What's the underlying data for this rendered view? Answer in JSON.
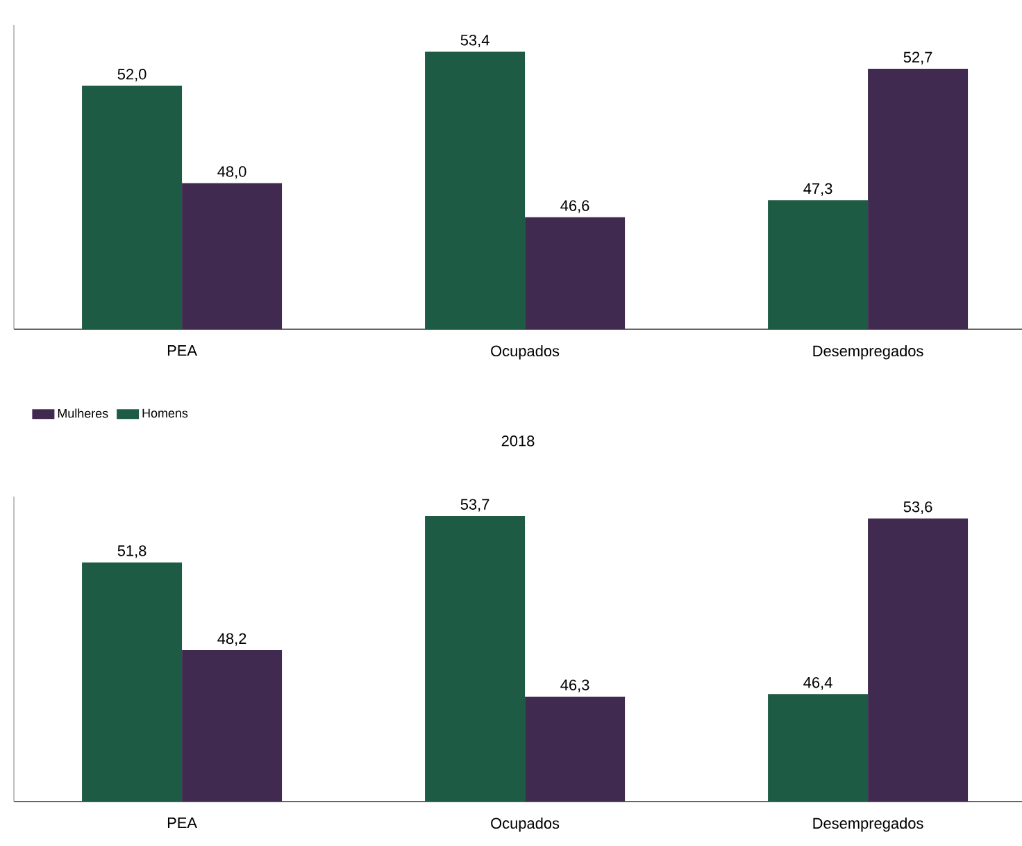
{
  "chart_data": [
    {
      "type": "bar",
      "categories": [
        "PEA",
        "Ocupados",
        "Desempregados"
      ],
      "series": [
        {
          "name": "Homens",
          "color": "#1d5b45",
          "values": [
            52.0,
            53.4,
            47.3
          ],
          "value_labels": [
            "52,0",
            "53,4",
            "47,3"
          ]
        },
        {
          "name": "Mulheres",
          "color": "#412a50",
          "values": [
            48.0,
            46.6,
            52.7
          ],
          "value_labels": [
            "48,0",
            "46,6",
            "52,7"
          ]
        }
      ],
      "ylim": [
        42,
        54.5
      ],
      "tick_labels": "x",
      "legend": "bottom left"
    },
    {
      "type": "bar",
      "title": "2018",
      "categories": [
        "PEA",
        "Ocupados",
        "Desempregados"
      ],
      "series": [
        {
          "color": "#1d5b45",
          "values": [
            51.8,
            53.7,
            46.4
          ],
          "value_labels": [
            "51,8",
            "53,7",
            "46,4"
          ]
        },
        {
          "color": "#412a50",
          "values": [
            48.2,
            46.3,
            53.6
          ],
          "value_labels": [
            "48,2",
            "46,3",
            "53,6"
          ]
        }
      ],
      "ylim": [
        42,
        54.5
      ],
      "tick_labels": "x"
    }
  ]
}
